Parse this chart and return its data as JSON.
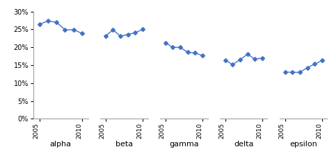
{
  "panels": [
    {
      "name": "alpha",
      "years": [
        2005,
        2006,
        2007,
        2008,
        2009,
        2010
      ],
      "values": [
        0.264,
        0.274,
        0.27,
        0.249,
        0.249,
        0.239
      ]
    },
    {
      "name": "beta",
      "years": [
        2005,
        2006,
        2007,
        2008,
        2009,
        2010
      ],
      "values": [
        0.231,
        0.249,
        0.231,
        0.236,
        0.241,
        0.25
      ]
    },
    {
      "name": "gamma",
      "years": [
        2005,
        2006,
        2007,
        2008,
        2009,
        2010
      ],
      "values": [
        0.213,
        0.2,
        0.2,
        0.186,
        0.184,
        0.177
      ]
    },
    {
      "name": "delta",
      "years": [
        2005,
        2006,
        2007,
        2008,
        2009,
        2010
      ],
      "values": [
        0.164,
        0.152,
        0.165,
        0.181,
        0.167,
        0.17
      ]
    },
    {
      "name": "epsilon",
      "years": [
        2005,
        2006,
        2007,
        2008,
        2009,
        2010
      ],
      "values": [
        0.131,
        0.13,
        0.13,
        0.143,
        0.153,
        0.163
      ]
    }
  ],
  "ylim": [
    0.0,
    0.3
  ],
  "yticks": [
    0.0,
    0.05,
    0.1,
    0.15,
    0.2,
    0.25,
    0.3
  ],
  "line_color": "#4472C4",
  "marker": "D",
  "marker_size": 3,
  "line_width": 1.0,
  "background_color": "#ffffff",
  "tick_label_rotation": 90,
  "year_ticks": [
    2005,
    2010
  ],
  "xlim": [
    2004.3,
    2010.7
  ],
  "spine_color": "#a0a0a0",
  "label_fontsize": 8,
  "ytick_fontsize": 7,
  "xtick_fontsize": 6.5
}
